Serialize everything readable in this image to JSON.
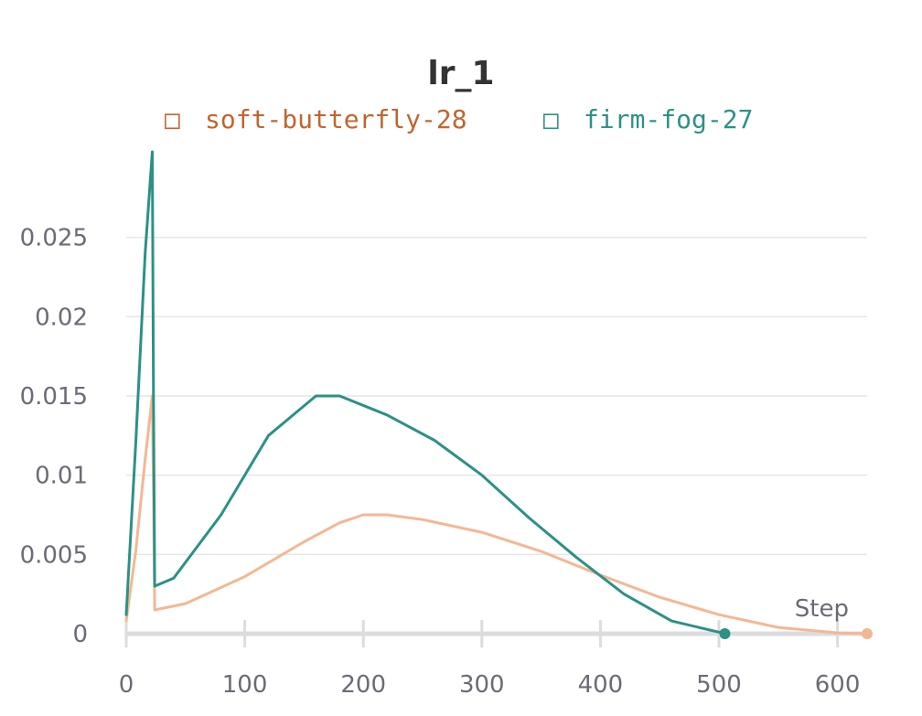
{
  "chart_data": {
    "type": "line",
    "title": "lr_1",
    "xlabel": "Step",
    "ylabel": "",
    "xlim": [
      0,
      625
    ],
    "ylim": [
      0,
      0.0304
    ],
    "x_ticks": [
      0,
      100,
      200,
      300,
      400,
      500,
      600
    ],
    "y_ticks": [
      0,
      0.005,
      0.01,
      0.015,
      0.02,
      0.025
    ],
    "x_tick_labels": [
      "0",
      "100",
      "200",
      "300",
      "400",
      "500",
      "600"
    ],
    "y_tick_labels": [
      "0",
      "0.005",
      "0.01",
      "0.015",
      "0.02",
      "0.025"
    ],
    "grid": true,
    "legend_position": "top-center",
    "legend_marker_glyph": "□",
    "series": [
      {
        "name": "soft-butterfly-28",
        "color": "#f4b793",
        "legend_color": "#c1652f",
        "stroke_width": 3,
        "x": [
          0,
          8,
          16,
          22,
          23,
          24,
          50,
          100,
          150,
          180,
          200,
          220,
          250,
          300,
          350,
          400,
          450,
          500,
          550,
          600,
          625
        ],
        "y": [
          0.0008,
          0.0052,
          0.011,
          0.015,
          0.009,
          0.0015,
          0.0019,
          0.0036,
          0.0058,
          0.007,
          0.0075,
          0.0075,
          0.0072,
          0.0064,
          0.0052,
          0.0037,
          0.0023,
          0.0012,
          0.0004,
          5e-05,
          0.0
        ]
      },
      {
        "name": "firm-fog-27",
        "color": "#2c9186",
        "legend_color": "#2c9186",
        "stroke_width": 3,
        "x": [
          0,
          8,
          16,
          22,
          23,
          24,
          40,
          80,
          120,
          160,
          180,
          220,
          260,
          300,
          340,
          380,
          420,
          460,
          500,
          505
        ],
        "y": [
          0.0012,
          0.012,
          0.024,
          0.0304,
          0.015,
          0.003,
          0.0035,
          0.0075,
          0.0125,
          0.015,
          0.015,
          0.0138,
          0.0122,
          0.01,
          0.0073,
          0.0048,
          0.0025,
          0.0008,
          0.0001,
          0.0
        ]
      }
    ]
  }
}
